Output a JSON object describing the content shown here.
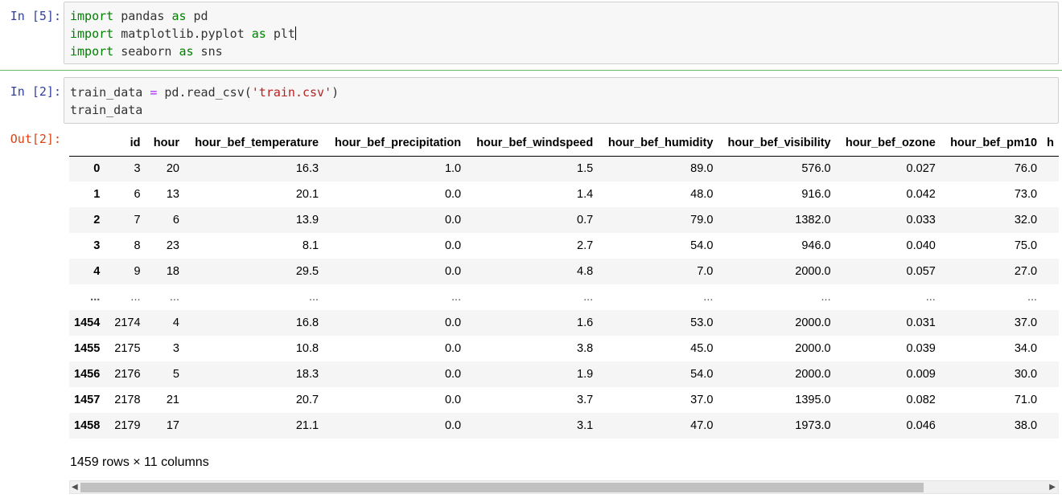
{
  "cell1": {
    "prompt": "In [5]:",
    "lines": [
      {
        "kw": "import",
        "rest": " pandas ",
        "kw2": "as",
        "tail": " pd"
      },
      {
        "kw": "import",
        "rest": " matplotlib.pyplot ",
        "kw2": "as",
        "tail": " plt"
      },
      {
        "kw": "import",
        "rest": " seaborn ",
        "kw2": "as",
        "tail": " sns"
      }
    ]
  },
  "cell2": {
    "prompt": "In [2]:",
    "line1": {
      "var": "train_data ",
      "op": "=",
      "call": " pd.read_csv(",
      "str": "'train.csv'",
      "close": ")"
    },
    "line2": "train_data",
    "out_prompt": "Out[2]:"
  },
  "table": {
    "columns": [
      "",
      "id",
      "hour",
      "hour_bef_temperature",
      "hour_bef_precipitation",
      "hour_bef_windspeed",
      "hour_bef_humidity",
      "hour_bef_visibility",
      "hour_bef_ozone",
      "hour_bef_pm10",
      "h"
    ],
    "rows": [
      [
        "0",
        "3",
        "20",
        "16.3",
        "1.0",
        "1.5",
        "89.0",
        "576.0",
        "0.027",
        "76.0",
        ""
      ],
      [
        "1",
        "6",
        "13",
        "20.1",
        "0.0",
        "1.4",
        "48.0",
        "916.0",
        "0.042",
        "73.0",
        ""
      ],
      [
        "2",
        "7",
        "6",
        "13.9",
        "0.0",
        "0.7",
        "79.0",
        "1382.0",
        "0.033",
        "32.0",
        ""
      ],
      [
        "3",
        "8",
        "23",
        "8.1",
        "0.0",
        "2.7",
        "54.0",
        "946.0",
        "0.040",
        "75.0",
        ""
      ],
      [
        "4",
        "9",
        "18",
        "29.5",
        "0.0",
        "4.8",
        "7.0",
        "2000.0",
        "0.057",
        "27.0",
        ""
      ],
      [
        "...",
        "...",
        "...",
        "...",
        "...",
        "...",
        "...",
        "...",
        "...",
        "...",
        ""
      ],
      [
        "1454",
        "2174",
        "4",
        "16.8",
        "0.0",
        "1.6",
        "53.0",
        "2000.0",
        "0.031",
        "37.0",
        ""
      ],
      [
        "1455",
        "2175",
        "3",
        "10.8",
        "0.0",
        "3.8",
        "45.0",
        "2000.0",
        "0.039",
        "34.0",
        ""
      ],
      [
        "1456",
        "2176",
        "5",
        "18.3",
        "0.0",
        "1.9",
        "54.0",
        "2000.0",
        "0.009",
        "30.0",
        ""
      ],
      [
        "1457",
        "2178",
        "21",
        "20.7",
        "0.0",
        "3.7",
        "37.0",
        "1395.0",
        "0.082",
        "71.0",
        ""
      ],
      [
        "1458",
        "2179",
        "17",
        "21.1",
        "0.0",
        "3.1",
        "47.0",
        "1973.0",
        "0.046",
        "38.0",
        ""
      ]
    ]
  },
  "summary": "1459 rows × 11 columns",
  "scrollbar": {
    "left_arrow": "◀",
    "right_arrow": "▶"
  }
}
